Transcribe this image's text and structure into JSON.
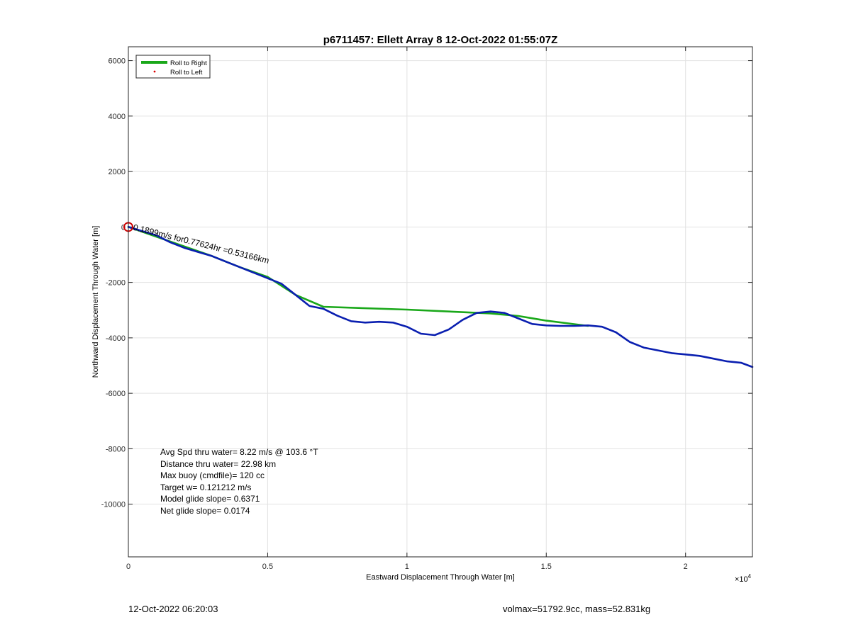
{
  "chart_data": {
    "type": "line",
    "title": "p6711457: Ellett Array 8 12-Oct-2022 01:55:07Z",
    "xlabel": "Eastward Displacement Through Water [m]",
    "ylabel": "Northward Displacement Through Water [m]",
    "x_exponent_label": "×10",
    "x_exponent_power": "4",
    "xlim": [
      0,
      22400
    ],
    "ylim": [
      -11900,
      6500
    ],
    "x_ticks": [
      0,
      5000,
      10000,
      15000,
      20000
    ],
    "x_tick_labels": [
      "0",
      "0.5",
      "1",
      "1.5",
      "2"
    ],
    "y_ticks": [
      6000,
      4000,
      2000,
      0,
      -2000,
      -4000,
      -6000,
      -8000,
      -10000
    ],
    "y_tick_labels": [
      "6000",
      "4000",
      "2000",
      "0",
      "-2000",
      "-4000",
      "-6000",
      "-8000",
      "-10000"
    ],
    "grid": true,
    "legend_position": "top-left",
    "legend": [
      "Roll to Right",
      "Roll to Left"
    ],
    "colors": {
      "roll_right": "#1aa81a",
      "track": "#0a1fb0",
      "start_marker": "#cc0000",
      "roll_left": "#dd0000",
      "grid": "#e2e2e2",
      "axes": "#262626"
    },
    "series": [
      {
        "name": "Roll to Right",
        "x": [
          0,
          1000,
          2000,
          3000,
          4000,
          5000,
          6000,
          7000,
          10000,
          13000,
          14000,
          15000,
          16500
        ],
        "y": [
          0,
          -350,
          -700,
          -1050,
          -1450,
          -1800,
          -2450,
          -2880,
          -2980,
          -3120,
          -3210,
          -3380,
          -3570
        ]
      },
      {
        "name": "",
        "x": [
          0,
          500,
          1000,
          1500,
          2000,
          2500,
          3000,
          3500,
          4000,
          4500,
          5000,
          5500,
          6000,
          6500,
          7000,
          7500,
          8000,
          8500,
          9000,
          9500,
          10000,
          10500,
          11000,
          11500,
          12000,
          12500,
          13000,
          13500,
          14000,
          14500,
          15000,
          15500,
          16000,
          16500,
          17000,
          17500,
          18000,
          18500,
          19000,
          19500,
          20000,
          20500,
          21000,
          21500,
          22000,
          22400
        ],
        "y": [
          0,
          -150,
          -300,
          -550,
          -750,
          -900,
          -1050,
          -1250,
          -1450,
          -1650,
          -1850,
          -2050,
          -2450,
          -2850,
          -2950,
          -3200,
          -3400,
          -3450,
          -3420,
          -3450,
          -3600,
          -3850,
          -3900,
          -3700,
          -3350,
          -3100,
          -3050,
          -3100,
          -3300,
          -3500,
          -3550,
          -3570,
          -3570,
          -3550,
          -3600,
          -3800,
          -4150,
          -4350,
          -4450,
          -4550,
          -4600,
          -4650,
          -4750,
          -4850,
          -4900,
          -5050
        ]
      }
    ],
    "annotations": {
      "start_marker": {
        "x": 0,
        "y": 0
      },
      "current_text": "0.1899m/s for0.77624hr =0.53166km",
      "current_rotation_deg": 14,
      "stats": [
        "Avg Spd thru water=  8.22 m/s @ 103.6 °T",
        "Distance thru water= 22.98 km",
        "Max buoy (cmdfile)= 120 cc",
        "Target w= 0.121212 m/s",
        "Model glide slope= 0.6371",
        "Net glide slope= 0.0174"
      ]
    }
  },
  "footer": {
    "date": "12-Oct-2022 06:20:03",
    "summary": "volmax=51792.9cc, mass=52.831kg"
  }
}
